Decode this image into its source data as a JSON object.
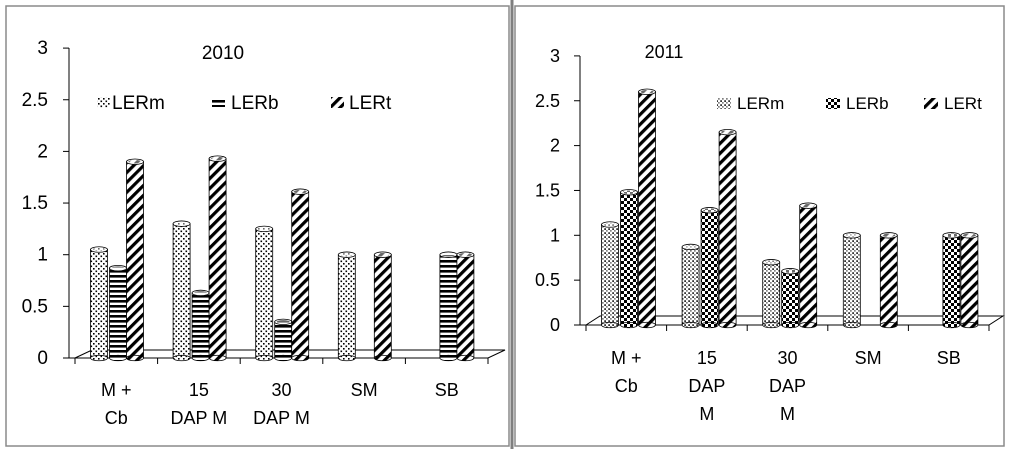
{
  "chart_data": [
    {
      "type": "bar",
      "title": "2010",
      "categories": [
        [
          "M +",
          "Cb"
        ],
        [
          "15",
          "DAP M"
        ],
        [
          "30",
          "DAP M"
        ],
        [
          "SM"
        ],
        [
          "SB"
        ]
      ],
      "series": [
        {
          "name": "LERm",
          "values": [
            1.05,
            1.3,
            1.25,
            1.0,
            null
          ]
        },
        {
          "name": "LERb",
          "values": [
            0.87,
            0.63,
            0.35,
            null,
            1.0
          ]
        },
        {
          "name": "LERt",
          "values": [
            1.9,
            1.93,
            1.61,
            1.0,
            1.0
          ]
        }
      ],
      "ylim": [
        0,
        3
      ],
      "yticks": [
        "0",
        "0.5",
        "1",
        "1.5",
        "2",
        "2.5",
        "3"
      ],
      "xlabel": "",
      "ylabel": "",
      "grid": false,
      "legend": "top"
    },
    {
      "type": "bar",
      "title": "2011",
      "categories": [
        [
          "M +",
          "Cb"
        ],
        [
          "15",
          "DAP",
          "M"
        ],
        [
          "30",
          "DAP",
          "M"
        ],
        [
          "SM"
        ],
        [
          "SB"
        ]
      ],
      "series": [
        {
          "name": "LERm",
          "values": [
            1.12,
            0.87,
            0.7,
            1.0,
            null
          ]
        },
        {
          "name": "LERb",
          "values": [
            1.48,
            1.28,
            0.6,
            null,
            1.0
          ]
        },
        {
          "name": "LERt",
          "values": [
            2.6,
            2.15,
            1.33,
            1.0,
            1.0
          ]
        }
      ],
      "ylim": [
        0,
        3
      ],
      "yticks": [
        "0",
        "0.5",
        "1",
        "1.5",
        "2",
        "2.5",
        "3"
      ],
      "xlabel": "",
      "ylabel": "",
      "grid": false,
      "legend": "top"
    }
  ]
}
